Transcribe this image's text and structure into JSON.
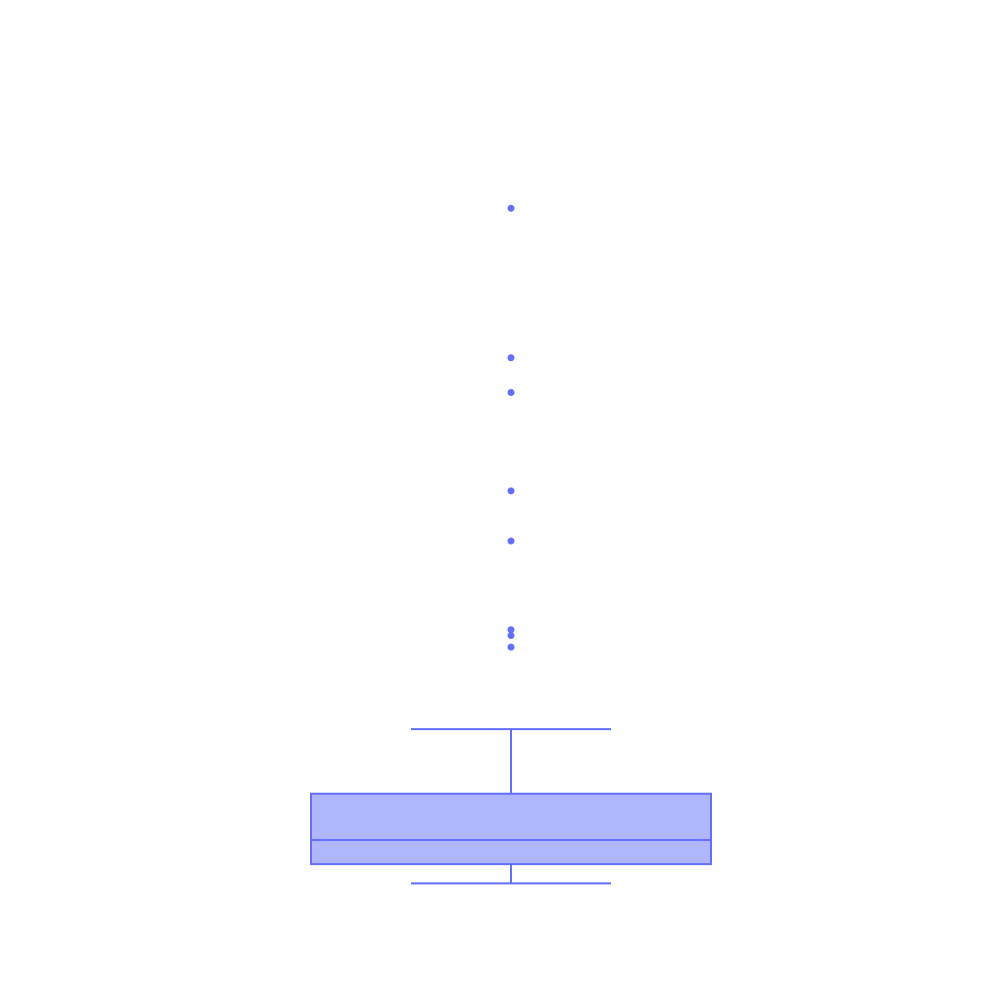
{
  "chart_data": {
    "type": "box",
    "title": "",
    "xlabel": "",
    "ylabel": "",
    "axes_visible": false,
    "grid": false,
    "ylim": [
      -0.4,
      8.6
    ],
    "series": [
      {
        "min": 0.0,
        "q1": 0.2,
        "median": 0.45,
        "q3": 0.93,
        "max": 1.6,
        "outliers": [
          2.45,
          2.57,
          2.63,
          3.55,
          4.07,
          5.09,
          5.45,
          7.0
        ]
      }
    ],
    "colors": {
      "stroke": "#636efa",
      "fill": "#b0b6fc",
      "background": "#ffffff"
    }
  }
}
